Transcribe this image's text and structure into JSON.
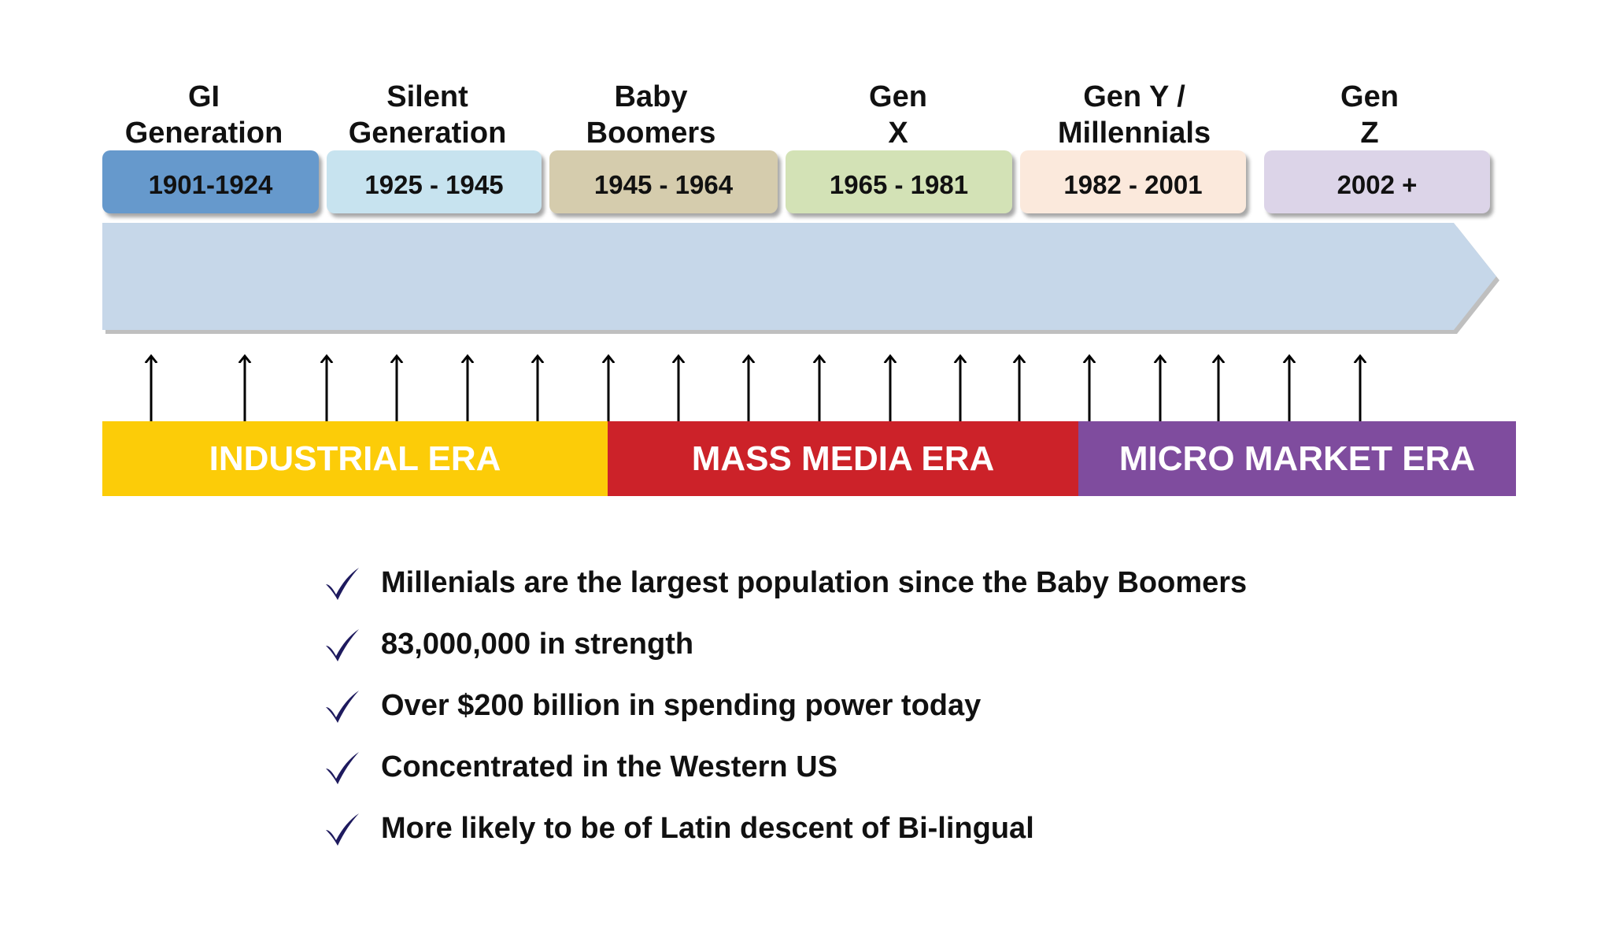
{
  "generations": [
    {
      "title_line1": "GI",
      "title_line2": "Generation",
      "years": "1901-1924",
      "color": "#6699cc"
    },
    {
      "title_line1": "Silent",
      "title_line2": "Generation",
      "years": "1925 - 1945",
      "color": "#c7e3ef"
    },
    {
      "title_line1": "Baby",
      "title_line2": "Boomers",
      "years": "1945 - 1964",
      "color": "#d5ccad"
    },
    {
      "title_line1": "Gen",
      "title_line2": "X",
      "years": "1965 - 1981",
      "color": "#d3e2b6"
    },
    {
      "title_line1": "Gen Y /",
      "title_line2": "Millennials",
      "years": "1982 - 2001",
      "color": "#fbe9dc"
    },
    {
      "title_line1": "Gen",
      "title_line2": "Z",
      "years": "2002 +",
      "color": "#dcd4e8"
    }
  ],
  "timeline": {
    "bar_color": "#c6d7e9",
    "arrow_icon": "up-arrow-icon",
    "arrow_count": 18
  },
  "eras": [
    {
      "label": "INDUSTRIAL ERA",
      "color": "#fccc08"
    },
    {
      "label": "MASS MEDIA ERA",
      "color": "#cc2229"
    },
    {
      "label": "MICRO MARKET ERA",
      "color": "#7f4c9e"
    }
  ],
  "bullets": {
    "icon": "checkmark-icon",
    "check_color": "#1e1a5e",
    "items": [
      "Millenials are the largest population since the Baby Boomers",
      "83,000,000 in strength",
      "Over $200 billion in spending power today",
      "Concentrated in the Western US",
      "More likely to be of Latin descent of Bi-lingual"
    ]
  }
}
